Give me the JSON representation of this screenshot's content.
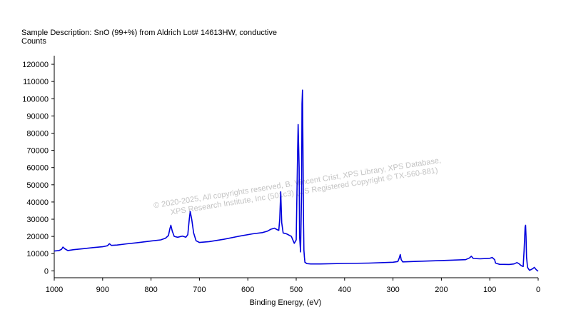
{
  "header": {
    "sample_description": "Sample Description:  SnO (99+%) from Aldrich Lot# 14613HW, conductive",
    "y_axis_label": "Counts"
  },
  "watermark": {
    "line1": "© 2020-2025,  All copyrights reserved,   B. Vincent Crist,  XPS Library, XPS Database,",
    "line2": "XPS Research Institute, Inc (501c3)   (US Registered Copyright © TX-560-881)"
  },
  "chart_data": {
    "type": "line",
    "title": "Sample Description:  SnO (99+%) from Aldrich Lot# 14613HW, conductive",
    "xlabel": "Binding Energy, (eV)",
    "ylabel": "Counts",
    "xlim": [
      1000,
      0
    ],
    "ylim": [
      -4000,
      125000
    ],
    "x_reversed": true,
    "grid": false,
    "legend": "none",
    "line_color": "#0000dd",
    "x_ticks": [
      1000,
      900,
      800,
      700,
      600,
      500,
      400,
      300,
      200,
      100,
      0
    ],
    "y_ticks": [
      0,
      10000,
      20000,
      30000,
      40000,
      50000,
      60000,
      70000,
      80000,
      90000,
      100000,
      110000,
      120000
    ],
    "series": [
      {
        "values": [
          [
            1000,
            11500
          ],
          [
            990,
            11800
          ],
          [
            985,
            12500
          ],
          [
            982,
            13800
          ],
          [
            978,
            12800
          ],
          [
            972,
            11800
          ],
          [
            960,
            12300
          ],
          [
            940,
            12900
          ],
          [
            920,
            13500
          ],
          [
            900,
            14000
          ],
          [
            890,
            14600
          ],
          [
            886,
            15800
          ],
          [
            882,
            14800
          ],
          [
            870,
            15000
          ],
          [
            850,
            15700
          ],
          [
            830,
            16300
          ],
          [
            800,
            17300
          ],
          [
            780,
            18000
          ],
          [
            770,
            19000
          ],
          [
            764,
            20500
          ],
          [
            761,
            24500
          ],
          [
            759,
            26500
          ],
          [
            756,
            23000
          ],
          [
            752,
            20000
          ],
          [
            745,
            19500
          ],
          [
            735,
            20200
          ],
          [
            728,
            19500
          ],
          [
            724,
            21000
          ],
          [
            721,
            30000
          ],
          [
            719,
            34500
          ],
          [
            716,
            30000
          ],
          [
            712,
            22000
          ],
          [
            707,
            17500
          ],
          [
            700,
            16500
          ],
          [
            680,
            17000
          ],
          [
            650,
            18300
          ],
          [
            620,
            20000
          ],
          [
            590,
            21500
          ],
          [
            570,
            22200
          ],
          [
            560,
            23000
          ],
          [
            552,
            24200
          ],
          [
            545,
            24800
          ],
          [
            540,
            24000
          ],
          [
            536,
            23500
          ],
          [
            534,
            30000
          ],
          [
            532,
            46000
          ],
          [
            530,
            28000
          ],
          [
            527,
            22000
          ],
          [
            520,
            21500
          ],
          [
            510,
            20000
          ],
          [
            504,
            16000
          ],
          [
            500,
            18000
          ],
          [
            497,
            70000
          ],
          [
            496,
            85000
          ],
          [
            494,
            60000
          ],
          [
            493,
            20000
          ],
          [
            491,
            11000
          ],
          [
            489,
            45000
          ],
          [
            488,
            97000
          ],
          [
            487,
            105000
          ],
          [
            486,
            70000
          ],
          [
            485,
            30000
          ],
          [
            484,
            12000
          ],
          [
            483,
            8000
          ],
          [
            482,
            5000
          ],
          [
            478,
            4200
          ],
          [
            470,
            4000
          ],
          [
            450,
            4000
          ],
          [
            400,
            4300
          ],
          [
            350,
            4500
          ],
          [
            300,
            5000
          ],
          [
            290,
            5400
          ],
          [
            287,
            7500
          ],
          [
            285,
            9500
          ],
          [
            283,
            6500
          ],
          [
            280,
            5200
          ],
          [
            250,
            5500
          ],
          [
            200,
            6000
          ],
          [
            150,
            6500
          ],
          [
            142,
            7500
          ],
          [
            138,
            8500
          ],
          [
            134,
            7200
          ],
          [
            120,
            7000
          ],
          [
            100,
            7300
          ],
          [
            95,
            7800
          ],
          [
            90,
            6500
          ],
          [
            88,
            4500
          ],
          [
            80,
            3800
          ],
          [
            60,
            3700
          ],
          [
            50,
            4000
          ],
          [
            44,
            4800
          ],
          [
            40,
            4200
          ],
          [
            35,
            3000
          ],
          [
            31,
            2500
          ],
          [
            29,
            12000
          ],
          [
            27,
            25500
          ],
          [
            26,
            26500
          ],
          [
            25,
            20000
          ],
          [
            24,
            8000
          ],
          [
            22,
            2000
          ],
          [
            18,
            300
          ],
          [
            14,
            800
          ],
          [
            10,
            1500
          ],
          [
            8,
            2000
          ],
          [
            5,
            1000
          ],
          [
            2,
            200
          ],
          [
            0,
            -200
          ]
        ]
      }
    ]
  }
}
